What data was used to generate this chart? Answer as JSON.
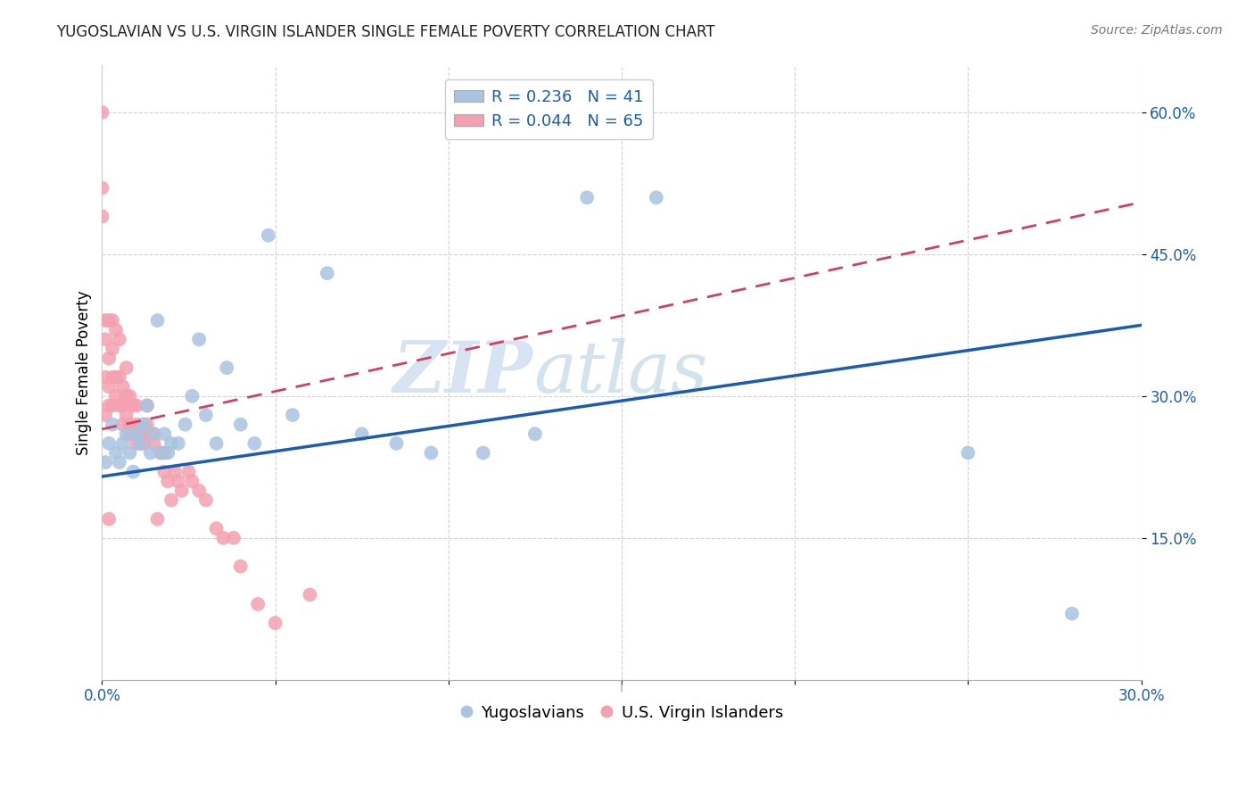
{
  "title": "YUGOSLAVIAN VS U.S. VIRGIN ISLANDER SINGLE FEMALE POVERTY CORRELATION CHART",
  "source": "Source: ZipAtlas.com",
  "ylabel": "Single Female Poverty",
  "xlim": [
    0.0,
    0.3
  ],
  "ylim": [
    0.0,
    0.65
  ],
  "xticks": [
    0.0,
    0.05,
    0.1,
    0.15,
    0.2,
    0.25,
    0.3
  ],
  "xtick_labels": [
    "0.0%",
    "",
    "",
    "",
    "",
    "",
    "30.0%"
  ],
  "ytick_positions": [
    0.15,
    0.3,
    0.45,
    0.6
  ],
  "ytick_labels": [
    "15.0%",
    "30.0%",
    "45.0%",
    "60.0%"
  ],
  "legend_blue_label": "R = 0.236   N = 41",
  "legend_pink_label": "R = 0.044   N = 65",
  "legend_bottom_blue": "Yugoslavians",
  "legend_bottom_pink": "U.S. Virgin Islanders",
  "blue_color": "#a8c4e0",
  "pink_color": "#f4a0b0",
  "trendline_blue_color": "#1a5cb0",
  "trendline_pink_color": "#d04060",
  "watermark_zip": "ZIP",
  "watermark_atlas": "atlas",
  "blue_scatter_x": [
    0.001,
    0.002,
    0.003,
    0.004,
    0.005,
    0.006,
    0.007,
    0.008,
    0.009,
    0.01,
    0.011,
    0.012,
    0.013,
    0.014,
    0.015,
    0.016,
    0.017,
    0.018,
    0.019,
    0.02,
    0.022,
    0.024,
    0.026,
    0.028,
    0.03,
    0.033,
    0.036,
    0.04,
    0.044,
    0.048,
    0.055,
    0.065,
    0.075,
    0.085,
    0.095,
    0.11,
    0.125,
    0.14,
    0.16,
    0.25,
    0.28
  ],
  "blue_scatter_y": [
    0.23,
    0.25,
    0.27,
    0.24,
    0.23,
    0.25,
    0.26,
    0.24,
    0.22,
    0.26,
    0.25,
    0.27,
    0.29,
    0.24,
    0.26,
    0.38,
    0.24,
    0.26,
    0.24,
    0.25,
    0.25,
    0.27,
    0.3,
    0.36,
    0.28,
    0.25,
    0.33,
    0.27,
    0.25,
    0.47,
    0.28,
    0.43,
    0.26,
    0.25,
    0.24,
    0.24,
    0.26,
    0.51,
    0.51,
    0.24,
    0.07
  ],
  "pink_scatter_x": [
    0.0,
    0.0,
    0.0,
    0.001,
    0.001,
    0.001,
    0.001,
    0.002,
    0.002,
    0.002,
    0.002,
    0.002,
    0.003,
    0.003,
    0.003,
    0.003,
    0.004,
    0.004,
    0.004,
    0.005,
    0.005,
    0.005,
    0.006,
    0.006,
    0.006,
    0.007,
    0.007,
    0.007,
    0.008,
    0.008,
    0.008,
    0.009,
    0.009,
    0.01,
    0.01,
    0.01,
    0.011,
    0.011,
    0.012,
    0.012,
    0.013,
    0.013,
    0.014,
    0.015,
    0.015,
    0.016,
    0.017,
    0.018,
    0.018,
    0.019,
    0.02,
    0.021,
    0.022,
    0.023,
    0.025,
    0.026,
    0.028,
    0.03,
    0.033,
    0.035,
    0.038,
    0.04,
    0.045,
    0.05,
    0.06
  ],
  "pink_scatter_y": [
    0.6,
    0.52,
    0.49,
    0.38,
    0.36,
    0.32,
    0.28,
    0.38,
    0.34,
    0.31,
    0.29,
    0.17,
    0.38,
    0.35,
    0.32,
    0.29,
    0.37,
    0.32,
    0.3,
    0.36,
    0.32,
    0.29,
    0.31,
    0.29,
    0.27,
    0.33,
    0.3,
    0.28,
    0.3,
    0.27,
    0.26,
    0.29,
    0.26,
    0.29,
    0.27,
    0.25,
    0.26,
    0.25,
    0.27,
    0.25,
    0.29,
    0.27,
    0.26,
    0.26,
    0.25,
    0.17,
    0.24,
    0.24,
    0.22,
    0.21,
    0.19,
    0.22,
    0.21,
    0.2,
    0.22,
    0.21,
    0.2,
    0.19,
    0.16,
    0.15,
    0.15,
    0.12,
    0.08,
    0.06,
    0.09
  ],
  "blue_trend_x0": 0.0,
  "blue_trend_x1": 0.3,
  "blue_trend_y0": 0.215,
  "blue_trend_y1": 0.375,
  "pink_trend_x0": 0.0,
  "pink_trend_x1": 0.3,
  "pink_trend_y0": 0.265,
  "pink_trend_y1": 0.505
}
